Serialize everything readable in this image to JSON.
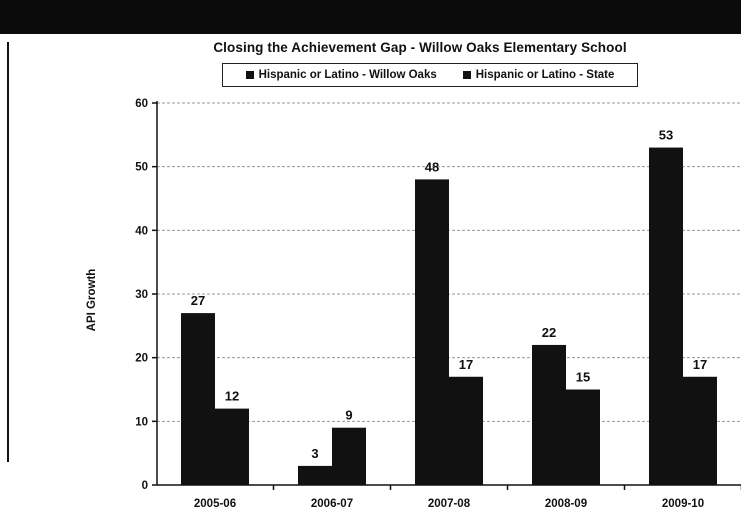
{
  "chart_data": {
    "type": "bar",
    "title": "Closing the Achievement Gap - Willow Oaks Elementary School",
    "xlabel": "",
    "ylabel": "API Growth",
    "categories": [
      "2005-06",
      "2006-07",
      "2007-08",
      "2008-09",
      "2009-10"
    ],
    "series": [
      {
        "name": "Hispanic or Latino - Willow Oaks",
        "values": [
          27,
          3,
          48,
          22,
          53
        ]
      },
      {
        "name": "Hispanic or Latino - State",
        "values": [
          12,
          9,
          17,
          15,
          17
        ]
      }
    ],
    "ylim": [
      0,
      60
    ],
    "yticks": [
      0,
      10,
      20,
      30,
      40,
      50,
      60
    ],
    "grid": true,
    "legend": "top",
    "colors": {
      "bars": "#111111",
      "grid": "#9a9a9a"
    }
  }
}
